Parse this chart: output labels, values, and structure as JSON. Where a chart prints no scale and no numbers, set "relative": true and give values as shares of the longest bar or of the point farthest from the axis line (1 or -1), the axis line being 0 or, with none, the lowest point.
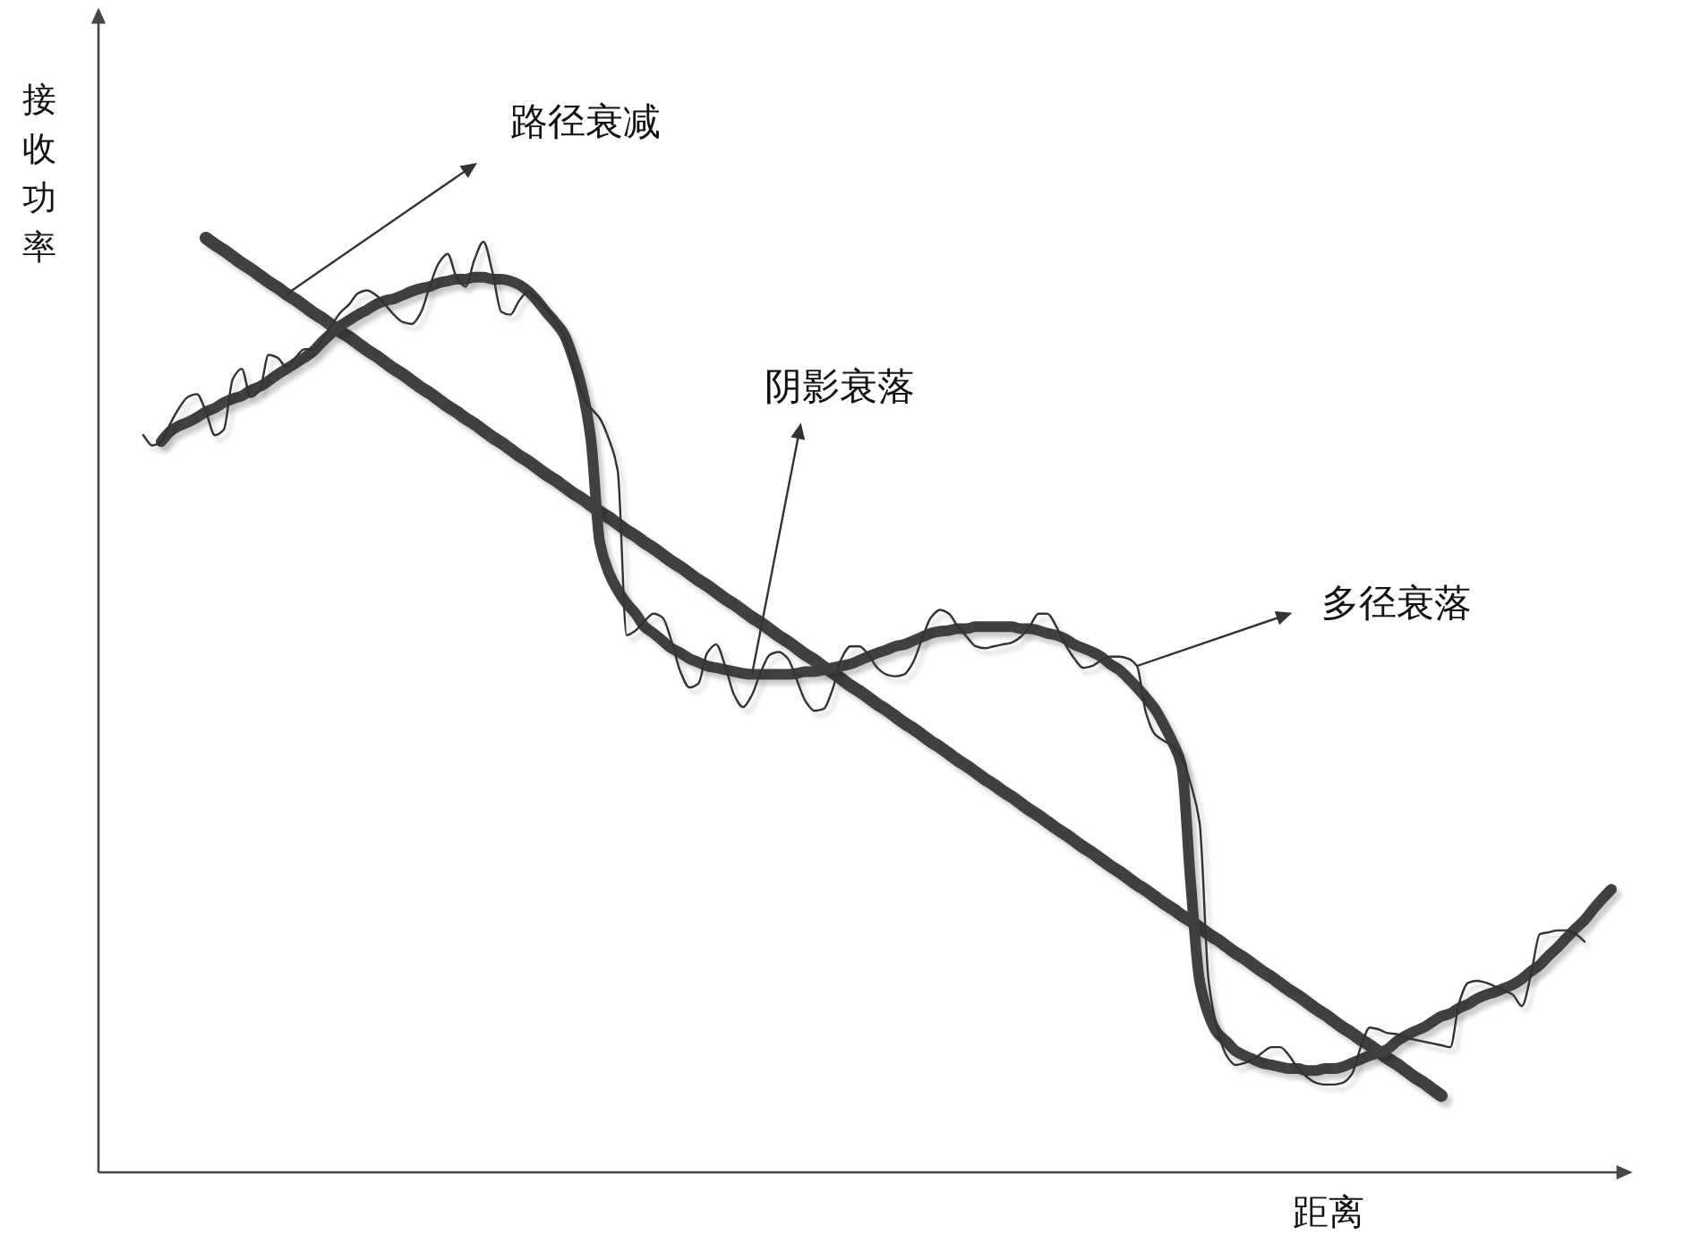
{
  "chart_data": {
    "type": "line",
    "relative": true,
    "xlabel": "距离",
    "ylabel": "接收功率",
    "annotations": [
      "路径衰减",
      "阴影衰落",
      "多径衰落"
    ],
    "categories": [
      null,
      null,
      null,
      null,
      null,
      null,
      null,
      null,
      null,
      null,
      null,
      null,
      null,
      null,
      null,
      null,
      null,
      null,
      null,
      null,
      null,
      null,
      null,
      null,
      null,
      null,
      null,
      null,
      null,
      null,
      null,
      null,
      null,
      null,
      null,
      null,
      null,
      null,
      null,
      null,
      null,
      null,
      null,
      null,
      null,
      null,
      null,
      null,
      null,
      null,
      null,
      null,
      null,
      null,
      null,
      null,
      null,
      null,
      null,
      null,
      null,
      null,
      null,
      null,
      null,
      null,
      null,
      null,
      null,
      null,
      null,
      null,
      null,
      null,
      null,
      null,
      null,
      null,
      null,
      null,
      null,
      null,
      null,
      null,
      null,
      null,
      null,
      null,
      null,
      null,
      null,
      null,
      null,
      null,
      null,
      null,
      null,
      null,
      null,
      null,
      null,
      null,
      null,
      null,
      null,
      null,
      null,
      null,
      null,
      null,
      null,
      null,
      null,
      null,
      null,
      null,
      null,
      null,
      null,
      null,
      null,
      null,
      null,
      null,
      null,
      null,
      null,
      null,
      null,
      null,
      null,
      null,
      null,
      null,
      null,
      null,
      null,
      null,
      null,
      null,
      null,
      null,
      null,
      null,
      null,
      null,
      null,
      null,
      null,
      null,
      null,
      null,
      null,
      null,
      null,
      null,
      null,
      null,
      null,
      null,
      null,
      null,
      null,
      null,
      null
    ],
    "series": [
      {
        "color": "#404040",
        "values": [
          null,
          null,
          null,
          null,
          null,
          null,
          null,
          1.0,
          0.993,
          0.987,
          0.98,
          0.973,
          0.967,
          0.96,
          0.953,
          0.947,
          0.94,
          0.934,
          0.927,
          0.92,
          0.914,
          0.907,
          0.9,
          0.894,
          0.887,
          0.88,
          0.874,
          0.867,
          0.86,
          0.854,
          0.847,
          0.84,
          0.834,
          0.827,
          0.82,
          0.814,
          0.807,
          0.801,
          0.794,
          0.787,
          0.781,
          0.774,
          0.767,
          0.761,
          0.754,
          0.747,
          0.741,
          0.734,
          0.727,
          0.721,
          0.714,
          0.707,
          0.701,
          0.694,
          0.687,
          0.681,
          0.674,
          0.668,
          0.661,
          0.654,
          0.648,
          0.641,
          0.634,
          0.628,
          0.621,
          0.614,
          0.608,
          0.601,
          0.594,
          0.588,
          0.581,
          0.574,
          0.568,
          0.561,
          0.554,
          0.548,
          0.541,
          0.535,
          0.528,
          0.521,
          0.515,
          0.508,
          0.501,
          0.495,
          0.488,
          0.481,
          0.475,
          0.468,
          0.461,
          0.455,
          0.448,
          0.441,
          0.435,
          0.428,
          0.421,
          0.415,
          0.408,
          0.402,
          0.395,
          0.388,
          0.382,
          0.375,
          0.368,
          0.362,
          0.355,
          0.348,
          0.342,
          0.335,
          0.328,
          0.322,
          0.315,
          0.308,
          0.302,
          0.295,
          0.288,
          0.282,
          0.275,
          0.269,
          0.262,
          0.255,
          0.249,
          0.242,
          0.235,
          0.229,
          0.222,
          0.215,
          0.209,
          0.202,
          0.195,
          0.189,
          0.182,
          0.175,
          0.169,
          0.162,
          0.155,
          0.149,
          0.142,
          0.136,
          0.129,
          0.122,
          0.116,
          0.109,
          0.102,
          0.096,
          0.089,
          0.082,
          null,
          null,
          null,
          null,
          null,
          null,
          null,
          null,
          null,
          null,
          null,
          null,
          null,
          null,
          null,
          null,
          null,
          null,
          null
        ]
      },
      {
        "color": "#404040",
        "values": [
          null,
          null,
          0.782,
          0.793,
          0.799,
          0.803,
          0.808,
          0.814,
          0.818,
          0.824,
          0.828,
          0.831,
          0.837,
          0.841,
          0.847,
          0.854,
          0.86,
          0.866,
          0.872,
          0.879,
          0.889,
          0.898,
          0.906,
          0.912,
          0.918,
          0.923,
          0.929,
          0.933,
          0.935,
          0.939,
          0.943,
          0.946,
          0.948,
          0.952,
          0.954,
          0.956,
          0.956,
          0.958,
          0.958,
          0.956,
          0.956,
          0.954,
          0.95,
          0.943,
          0.933,
          0.921,
          0.91,
          0.897,
          0.872,
          0.839,
          0.785,
          0.674,
          0.642,
          0.623,
          0.609,
          0.598,
          0.584,
          0.577,
          0.569,
          0.561,
          0.556,
          0.55,
          0.546,
          0.542,
          0.54,
          0.538,
          0.536,
          0.534,
          0.533,
          0.533,
          0.533,
          0.533,
          0.533,
          0.534,
          0.536,
          0.536,
          0.538,
          0.54,
          0.542,
          0.544,
          0.548,
          0.552,
          0.556,
          0.559,
          0.563,
          0.565,
          0.569,
          0.573,
          0.577,
          0.579,
          0.58,
          0.582,
          0.582,
          0.584,
          0.584,
          0.584,
          0.584,
          0.584,
          0.582,
          0.582,
          0.58,
          0.577,
          0.575,
          0.571,
          0.565,
          0.561,
          0.557,
          0.552,
          0.544,
          0.538,
          0.529,
          0.519,
          0.508,
          0.496,
          0.479,
          0.46,
          0.435,
          0.31,
          0.205,
          0.169,
          0.149,
          0.14,
          0.13,
          0.125,
          0.121,
          0.117,
          0.115,
          0.113,
          0.111,
          0.111,
          0.109,
          0.109,
          0.111,
          0.111,
          0.113,
          0.117,
          0.121,
          0.125,
          0.128,
          0.132,
          0.14,
          0.146,
          0.151,
          0.155,
          0.161,
          0.167,
          0.17,
          0.176,
          0.18,
          0.186,
          0.19,
          0.193,
          0.197,
          0.201,
          0.207,
          0.215,
          0.222,
          0.232,
          0.241,
          0.251,
          0.261,
          0.27,
          0.282,
          0.293,
          0.303
        ]
      },
      {
        "color": "#333333",
        "values": [
          0.789,
          0.778,
          0.782,
          0.801,
          0.818,
          0.83,
          0.833,
          0.814,
          0.789,
          0.795,
          0.849,
          0.86,
          0.83,
          0.837,
          0.875,
          0.872,
          0.862,
          0.872,
          0.881,
          0.881,
          0.891,
          0.906,
          0.92,
          0.929,
          0.941,
          0.944,
          0.939,
          0.929,
          0.918,
          0.91,
          0.908,
          0.92,
          0.948,
          0.973,
          0.983,
          0.958,
          0.948,
          0.977,
          0.996,
          0.964,
          0.921,
          0.918,
          0.933,
          0.943,
          0.935,
          0.925,
          0.912,
          0.895,
          0.862,
          0.833,
          0.818,
          0.807,
          0.785,
          0.751,
          0.575,
          0.58,
          0.59,
          0.598,
          0.594,
          0.569,
          0.536,
          0.519,
          0.523,
          0.556,
          0.565,
          0.542,
          0.511,
          0.498,
          0.511,
          0.536,
          0.554,
          0.557,
          0.55,
          0.527,
          0.504,
          0.494,
          0.496,
          0.517,
          0.55,
          0.563,
          0.563,
          0.554,
          0.54,
          0.533,
          0.531,
          0.533,
          0.546,
          0.571,
          0.594,
          0.602,
          0.598,
          0.584,
          0.573,
          0.563,
          0.561,
          0.563,
          0.565,
          0.567,
          0.573,
          0.584,
          0.598,
          0.598,
          0.584,
          0.565,
          0.55,
          0.54,
          0.542,
          0.548,
          0.552,
          0.552,
          0.55,
          0.542,
          0.492,
          0.469,
          0.462,
          0.456,
          0.444,
          0.416,
          0.374,
          0.205,
          0.153,
          0.125,
          0.115,
          0.117,
          0.121,
          0.128,
          0.134,
          0.134,
          0.125,
          0.111,
          0.102,
          0.096,
          0.094,
          0.094,
          0.096,
          0.105,
          0.134,
          0.155,
          0.153,
          0.149,
          0.148,
          0.144,
          0.142,
          0.14,
          0.138,
          0.136,
          0.134,
          0.182,
          0.203,
          0.205,
          0.203,
          0.199,
          0.195,
          0.19,
          0.178,
          0.211,
          0.255,
          0.257,
          0.259,
          0.259,
          0.255,
          0.247,
          null,
          null,
          null
        ]
      }
    ]
  }
}
